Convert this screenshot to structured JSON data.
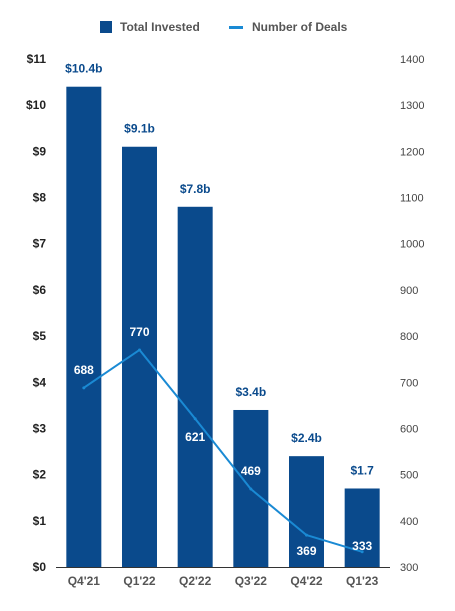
{
  "chart_data": {
    "type": "bar",
    "categories": [
      "Q4'21",
      "Q1'22",
      "Q2'22",
      "Q3'22",
      "Q4'22",
      "Q1'23"
    ],
    "series": [
      {
        "name": "Total Invested",
        "type": "bar",
        "axis": "left",
        "values": [
          10.4,
          9.1,
          7.8,
          3.4,
          2.4,
          1.7
        ],
        "labels": [
          "$10.4b",
          "$9.1b",
          "$7.8b",
          "$3.4b",
          "$2.4b",
          "$1.7"
        ],
        "color": "#0a4a8c"
      },
      {
        "name": "Number of Deals",
        "type": "line",
        "axis": "right",
        "values": [
          688,
          770,
          621,
          469,
          369,
          333
        ],
        "labels": [
          "688",
          "770",
          "621",
          "469",
          "369",
          "333"
        ],
        "color": "#1a8ad4"
      }
    ],
    "y_left": {
      "ylim": [
        0,
        11
      ],
      "ticks": [
        "$0",
        "$1",
        "$2",
        "$3",
        "$4",
        "$5",
        "$6",
        "$7",
        "$8",
        "$9",
        "$10",
        "$11"
      ]
    },
    "y_right": {
      "ylim": [
        300,
        1400
      ],
      "ticks": [
        "300",
        "400",
        "500",
        "600",
        "700",
        "800",
        "900",
        "1000",
        "1100",
        "1200",
        "1300",
        "1400"
      ]
    },
    "legend_position": "top",
    "grid": false
  }
}
